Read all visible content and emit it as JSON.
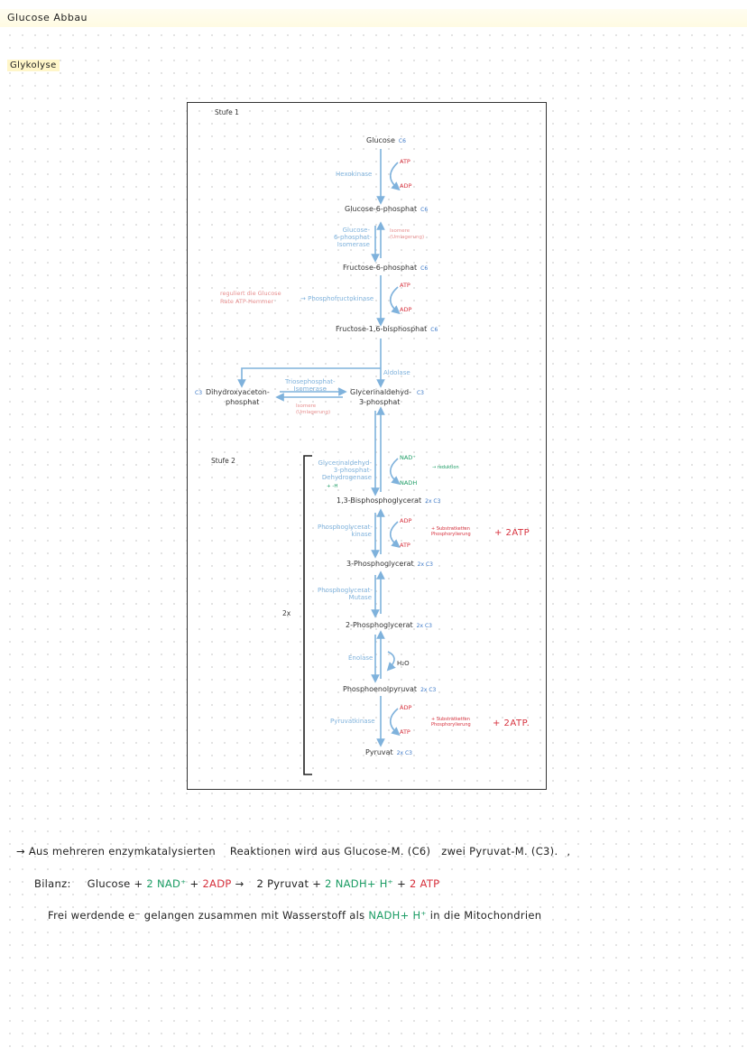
{
  "header": {
    "title": "Glucose Abbau",
    "subtitle": "Glykolyse"
  },
  "diagram": {
    "stufe1": "Stufe 1",
    "stufe2": "Stufe 2",
    "glucose": {
      "name": "Glucose",
      "c": "C6"
    },
    "hexokinase": "Hexokinase",
    "atp": "ATP",
    "adp": "ADP",
    "nad": "NAD⁺",
    "nadh": "NADH",
    "h2o": "H₂O",
    "g6p": {
      "name": "Glucose-6-phosphat",
      "c": "C6"
    },
    "g6p_isomerase": [
      "Glucose-",
      "6-phosphat-",
      "Isomerase"
    ],
    "isomere_note": [
      "Isomere",
      "(Umlagerung)"
    ],
    "f6p": {
      "name": "Fructose-6-phosphat",
      "c": "C6"
    },
    "pfk": "Phosphofructokinase",
    "reguliert": [
      "reguliert die Glucose",
      "Rate   ATP-Hemmer"
    ],
    "f16bp": {
      "name": "Fructose-1,6-bisphosphat",
      "c": "C6"
    },
    "aldolase": "Aldolase",
    "tpi": [
      "Triosephosphat-",
      "Isomerase"
    ],
    "dhap": {
      "c": "C3",
      "name1": "Dihydroxyaceton-",
      "name2": "phosphat"
    },
    "gap": {
      "name1": "Glycerinaldehyd-",
      "name2": "3-phosphat",
      "c": "C3"
    },
    "gapdh": [
      "Glycerinaldehyd-",
      "3-phosphat-",
      "Dehydrogenase"
    ],
    "gapdh_sub": "+ -H",
    "reduktion": "→ reduktion",
    "bpg": {
      "name": "1,3-Bisphosphoglycerat",
      "c": "2x C3"
    },
    "pgk": [
      "Phosphoglycerat-",
      "kinase"
    ],
    "substrat": [
      "+ Substratketten",
      "Phosphorylierung"
    ],
    "plus2atp": "+ 2ATP",
    "pg3": {
      "name": "3-Phosphoglycerat",
      "c": "2x C3"
    },
    "pgm": [
      "Phosphoglycerat-",
      "Mutase"
    ],
    "twox": "2x",
    "pg2": {
      "name": "2-Phosphoglycerat",
      "c": "2x C3"
    },
    "enolase": "Enolase",
    "pep": {
      "name": "Phosphoenolpyruvat",
      "c": "2x C3"
    },
    "pk": "Pyruvatkinase",
    "pyruvat": {
      "name": "Pyruvat",
      "c": "2x C3"
    },
    "plus2atp_b": "+ 2ATP."
  },
  "summary": {
    "line1_a": "→ Aus mehreren enzymkatalysierten",
    "line1_b": "Reaktionen wird aus Glucose-M. (C6)",
    "line1_c": "zwei Pyruvat-M. (C3).",
    "line1_d": ",",
    "bilanz_label": "Bilanz:",
    "bilanz_a": "Glucose +",
    "bilanz_b": "2 NAD⁺",
    "bilanz_c": "+",
    "bilanz_d": "2ADP",
    "bilanz_e": "→",
    "bilanz_f": "2 Pyruvat +",
    "bilanz_g": "2 NADH+ H⁺",
    "bilanz_h": "+",
    "bilanz_i": "2 ATP",
    "line3_a": "Frei werdende e⁻ gelangen zusammen mit Wasserstoff als",
    "line3_b": "NADH+ H⁺",
    "line3_c": "in die Mitochondrien"
  },
  "colors": {
    "enzyme": "#7fb2dc",
    "red": "#d7313d",
    "green": "#1b9c64",
    "highlight": "#fff6c9"
  }
}
